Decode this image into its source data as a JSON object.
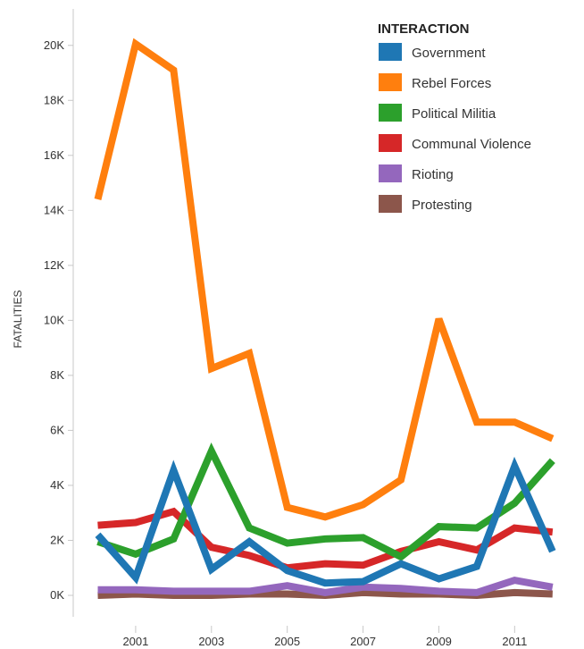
{
  "chart_data": {
    "type": "line",
    "title": "",
    "xlabel": "",
    "ylabel": "FATALITIES",
    "x": [
      2000,
      2001,
      2002,
      2003,
      2004,
      2005,
      2006,
      2007,
      2008,
      2009,
      2010,
      2011,
      2012
    ],
    "x_tick_values": [
      2001,
      2003,
      2005,
      2007,
      2009,
      2011
    ],
    "x_tick_labels": [
      "2001",
      "2003",
      "2005",
      "2007",
      "2009",
      "2011"
    ],
    "xlim": [
      1999.4,
      2012.5
    ],
    "ylim": [
      0,
      21000
    ],
    "y_tick_values": [
      0,
      2000,
      4000,
      6000,
      8000,
      10000,
      12000,
      14000,
      16000,
      18000,
      20000
    ],
    "y_tick_labels": [
      "0K",
      "2K",
      "4K",
      "6K",
      "8K",
      "10K",
      "12K",
      "14K",
      "16K",
      "18K",
      "20K"
    ],
    "grid": false,
    "legend": {
      "title": "INTERACTION",
      "position": "top-right"
    },
    "series": [
      {
        "name": "Government",
        "color": "#1f77b4",
        "values": [
          2200,
          650,
          4550,
          950,
          1950,
          900,
          450,
          500,
          1150,
          600,
          1050,
          4700,
          1600
        ]
      },
      {
        "name": "Rebel Forces",
        "color": "#ff7f0e",
        "values": [
          14400,
          20050,
          19100,
          8250,
          8800,
          3200,
          2850,
          3300,
          4200,
          10050,
          6300,
          6300,
          5700
        ]
      },
      {
        "name": "Political Militia",
        "color": "#2ca02c",
        "values": [
          1950,
          1500,
          2050,
          5250,
          2450,
          1900,
          2050,
          2100,
          1400,
          2500,
          2450,
          3350,
          4900
        ]
      },
      {
        "name": "Communal Violence",
        "color": "#d62728",
        "values": [
          2550,
          2650,
          3050,
          1750,
          1450,
          1000,
          1150,
          1100,
          1600,
          1950,
          1650,
          2450,
          2300
        ]
      },
      {
        "name": "Rioting",
        "color": "#9467bd",
        "values": [
          200,
          200,
          150,
          150,
          150,
          350,
          100,
          300,
          250,
          150,
          100,
          550,
          300
        ]
      },
      {
        "name": "Protesting",
        "color": "#8c564b",
        "values": [
          0,
          50,
          0,
          0,
          50,
          50,
          0,
          100,
          50,
          50,
          0,
          100,
          50
        ]
      }
    ]
  }
}
